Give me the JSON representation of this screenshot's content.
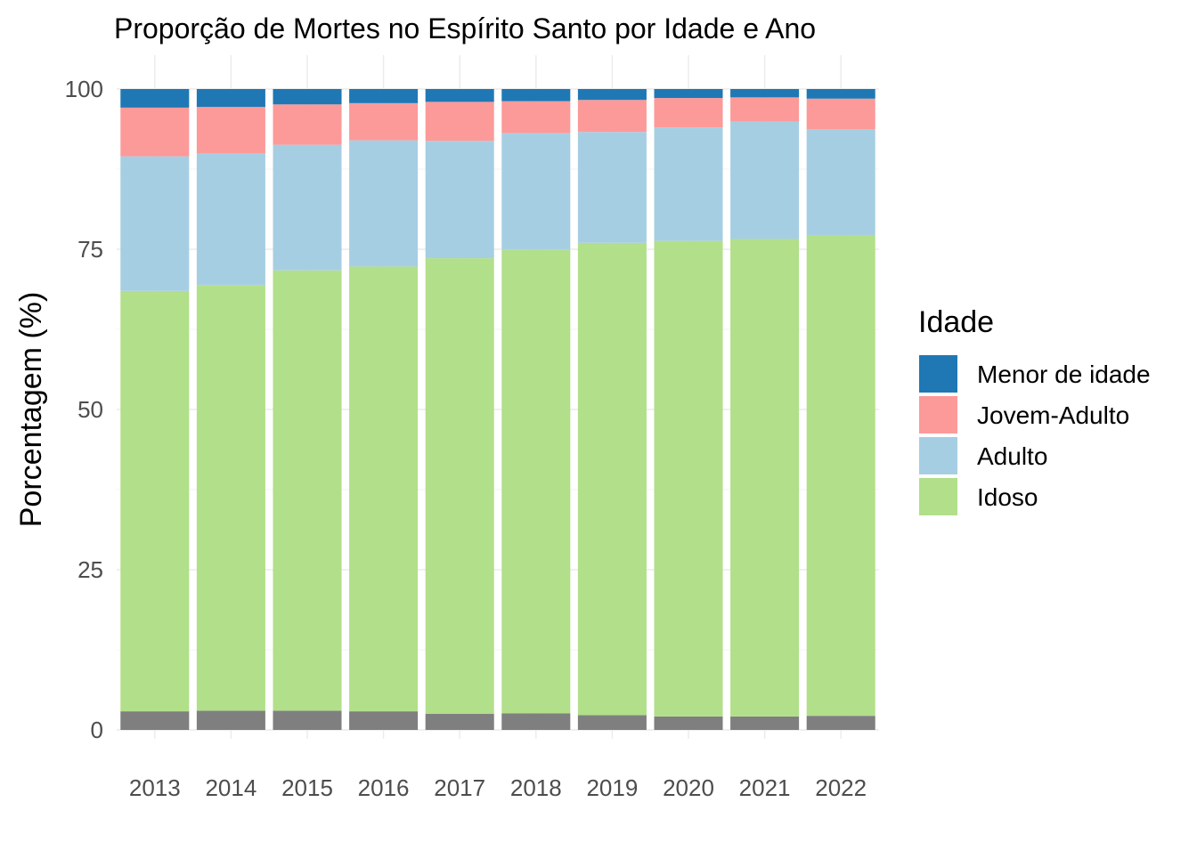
{
  "chart_data": {
    "type": "bar",
    "stacked": true,
    "title": "Proporção de Mortes no Espírito Santo por Idade e Ano",
    "xlabel": "",
    "ylabel": "Porcentagem (%)",
    "ylim": [
      0,
      100
    ],
    "yticks": [
      "0",
      "25",
      "50",
      "75",
      "100"
    ],
    "grid": true,
    "legend_position": "right",
    "legend_title": "Idade",
    "categories": [
      "2013",
      "2014",
      "2015",
      "2016",
      "2017",
      "2018",
      "2019",
      "2020",
      "2021",
      "2022"
    ],
    "series": [
      {
        "name": "",
        "color": "#7f7f7f",
        "values": [
          2.9,
          3.0,
          3.0,
          2.9,
          2.5,
          2.6,
          2.3,
          2.1,
          2.1,
          2.2
        ]
      },
      {
        "name": "Idoso",
        "color": "#b2df8a",
        "values": [
          65.6,
          66.4,
          68.7,
          69.4,
          71.1,
          72.3,
          73.7,
          74.2,
          74.5,
          74.9
        ]
      },
      {
        "name": "Adulto",
        "color": "#a6cee3",
        "values": [
          21.0,
          20.6,
          19.6,
          19.7,
          18.3,
          18.2,
          17.3,
          17.7,
          18.3,
          16.6
        ]
      },
      {
        "name": "Jovem-Adulto",
        "color": "#fb9a99",
        "values": [
          7.6,
          7.2,
          6.3,
          5.8,
          6.1,
          5.0,
          5.0,
          4.6,
          3.8,
          4.8
        ]
      },
      {
        "name": "Menor de idade",
        "color": "#1f78b4",
        "values": [
          2.9,
          2.8,
          2.4,
          2.2,
          2.0,
          1.9,
          1.7,
          1.4,
          1.3,
          1.5
        ]
      }
    ],
    "legend_order": [
      "Menor de idade",
      "Jovem-Adulto",
      "Adulto",
      "Idoso"
    ]
  }
}
